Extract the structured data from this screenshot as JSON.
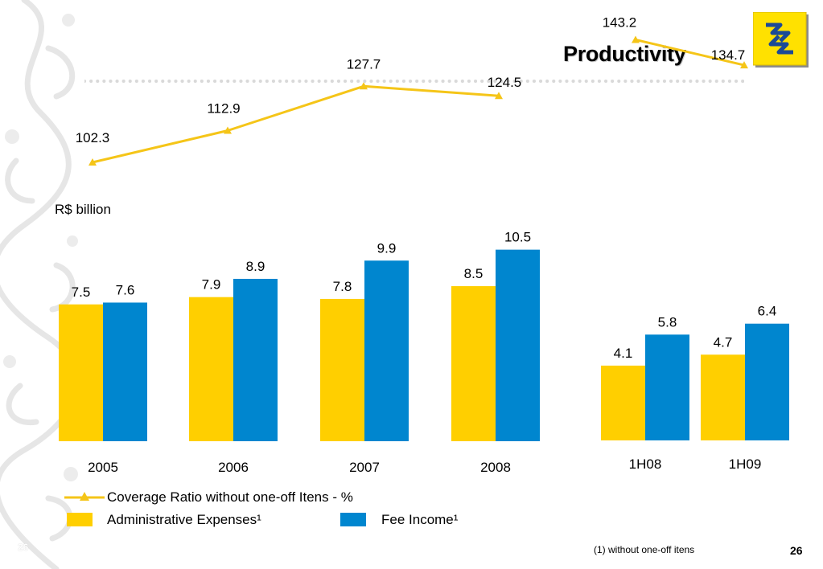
{
  "header": {
    "title": "Productivity",
    "logo_icon": "banco-do-brasil-logo"
  },
  "unit_label": "R$ billion",
  "legend": {
    "line_label": "Coverage Ratio without one-off Itens - %",
    "admin_label": "Administrative Expenses¹",
    "fee_label": "Fee Income¹"
  },
  "footnote": "(1) without one-off itens",
  "page_number": "26",
  "colors": {
    "admin": "#ffcf00",
    "fee": "#0086cf",
    "line": "#f5c518",
    "dots": "#d9d9d9"
  },
  "chart_data": [
    {
      "type": "bar",
      "categories": [
        "2005",
        "2006",
        "2007",
        "2008"
      ],
      "series": [
        {
          "name": "Administrative Expenses¹",
          "values": [
            7.5,
            7.9,
            7.8,
            8.5
          ]
        },
        {
          "name": "Fee Income¹",
          "values": [
            7.6,
            8.9,
            9.9,
            10.5
          ]
        }
      ],
      "ylabel": "R$ billion"
    },
    {
      "type": "bar",
      "categories": [
        "1H08",
        "1H09"
      ],
      "series": [
        {
          "name": "Administrative Expenses¹",
          "values": [
            4.1,
            4.7
          ]
        },
        {
          "name": "Fee Income¹",
          "values": [
            5.8,
            6.4
          ]
        }
      ],
      "ylabel": "R$ billion"
    },
    {
      "type": "line",
      "categories": [
        "2005",
        "2006",
        "2007",
        "2008",
        "1H08",
        "1H09"
      ],
      "series": [
        {
          "name": "Coverage Ratio without one-off Itens - %",
          "values": [
            102.3,
            112.9,
            127.7,
            124.5,
            143.2,
            134.7
          ]
        }
      ]
    }
  ]
}
